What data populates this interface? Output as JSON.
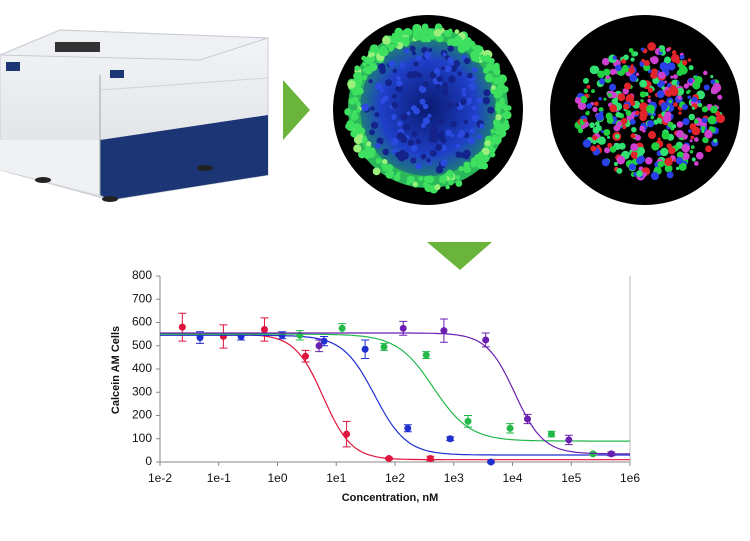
{
  "chart_data": {
    "type": "scatter",
    "xlabel": "Concentration, nM",
    "ylabel": "Calcein AM Cells",
    "xscale": "log",
    "xlim": [
      0.01,
      1000000
    ],
    "xticks": [
      {
        "value": 0.01,
        "label": "1e-2"
      },
      {
        "value": 0.1,
        "label": "1e-1"
      },
      {
        "value": 1,
        "label": "1e0"
      },
      {
        "value": 10,
        "label": "1e1"
      },
      {
        "value": 100,
        "label": "1e2"
      },
      {
        "value": 1000,
        "label": "1e3"
      },
      {
        "value": 10000,
        "label": "1e4"
      },
      {
        "value": 100000,
        "label": "1e5"
      },
      {
        "value": 1000000,
        "label": "1e6"
      }
    ],
    "ylim": [
      0,
      800
    ],
    "yticks": [
      0,
      100,
      200,
      300,
      400,
      500,
      600,
      700,
      800
    ],
    "series": [
      {
        "color": "#e0143c",
        "x": [
          0.024,
          0.12,
          0.6,
          3,
          15,
          79,
          400
        ],
        "values": [
          580,
          540,
          570,
          455,
          120,
          15,
          15
        ],
        "errors": [
          60,
          50,
          50,
          25,
          55,
          5,
          10
        ],
        "fit": {
          "top": 550,
          "bottom": 10,
          "ec50": 6,
          "hill": 1.8
        }
      },
      {
        "color": "#1f2fd0",
        "x": [
          0.048,
          0.24,
          1.2,
          6.2,
          31,
          165,
          870,
          4300
        ],
        "values": [
          535,
          540,
          545,
          520,
          485,
          145,
          100,
          0
        ],
        "errors": [
          25,
          15,
          15,
          20,
          40,
          15,
          8,
          4
        ],
        "fit": {
          "top": 545,
          "bottom": 30,
          "ec50": 45,
          "hill": 1.6
        }
      },
      {
        "color": "#22b84a",
        "x": [
          2.4,
          12.6,
          65,
          340,
          1750,
          9100,
          46000,
          234000
        ],
        "values": [
          545,
          575,
          495,
          460,
          175,
          145,
          120,
          35
        ],
        "errors": [
          20,
          20,
          15,
          15,
          25,
          20,
          12,
          5
        ],
        "fit": {
          "top": 550,
          "bottom": 90,
          "ec50": 450,
          "hill": 1.4
        }
      },
      {
        "color": "#6a1fb0",
        "x": [
          5.1,
          138,
          680,
          3500,
          18000,
          91000,
          480000
        ],
        "values": [
          500,
          575,
          565,
          525,
          185,
          95,
          35
        ],
        "errors": [
          25,
          30,
          50,
          30,
          20,
          20,
          8
        ],
        "fit": {
          "top": 555,
          "bottom": 35,
          "ec50": 11000,
          "hill": 1.8
        }
      }
    ]
  }
}
